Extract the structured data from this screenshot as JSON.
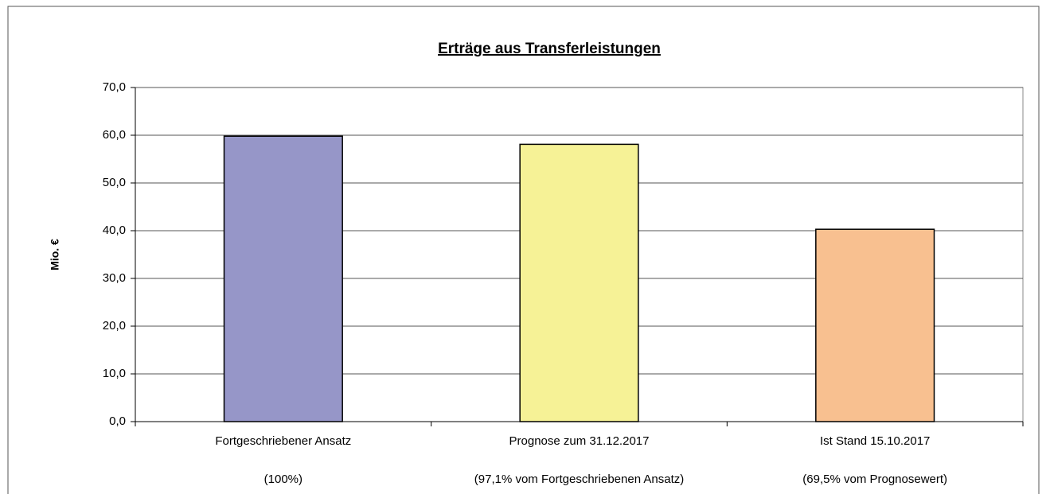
{
  "chart_data": {
    "type": "bar",
    "title": "Erträge aus Transferleistungen",
    "y_label": "Mio. €",
    "categories": [
      [
        "Fortgeschriebener Ansatz",
        "(100%)"
      ],
      [
        "Prognose zum 31.12.2017",
        "(97,1% vom Fortgeschriebenen Ansatz)"
      ],
      [
        "Ist Stand 15.10.2017",
        "(69,5% vom Prognosewert)"
      ]
    ],
    "values": [
      59.8,
      58.1,
      40.3
    ],
    "colors": [
      "#9696c8",
      "#f6f296",
      "#f8c090"
    ],
    "ylim": [
      0,
      70
    ],
    "yticks": [
      {
        "value": 0,
        "label": "0,0"
      },
      {
        "value": 10,
        "label": "10,0"
      },
      {
        "value": 20,
        "label": "20,0"
      },
      {
        "value": 30,
        "label": "30,0"
      },
      {
        "value": 40,
        "label": "40,0"
      },
      {
        "value": 50,
        "label": "50,0"
      },
      {
        "value": 60,
        "label": "60,0"
      },
      {
        "value": 70,
        "label": "70,0"
      }
    ],
    "grid": true
  }
}
